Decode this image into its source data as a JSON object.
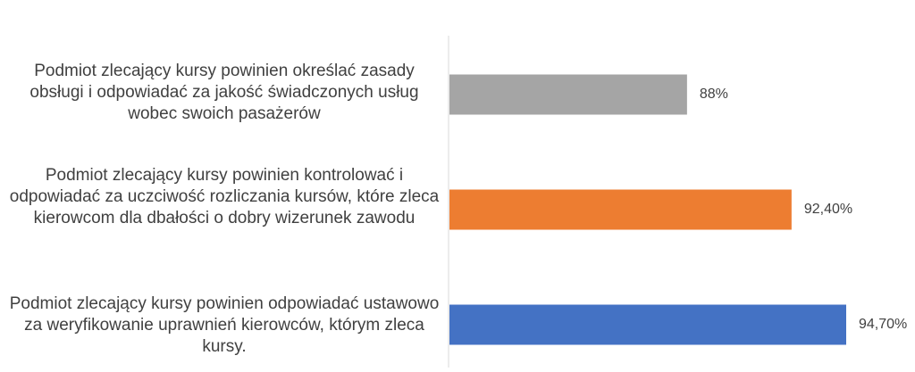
{
  "chart_data": {
    "type": "bar",
    "orientation": "horizontal",
    "title": "",
    "xlabel": "",
    "ylabel": "",
    "categories": [
      "Podmiot zlecający kursy powinien określać zasady obsługi i odpowiadać za jakość świadczonych usług wobec swoich pasażerów",
      "Podmiot zlecający kursy powinien kontrolować i odpowiadać za uczciwość rozliczania kursów, które zleca kierowcom dla dbałości o dobry wizerunek zawodu",
      "Podmiot zlecający kursy powinien odpowiadać ustawowo za weryfikowanie uprawnień kierowców, którym zleca kursy."
    ],
    "values": [
      88,
      92.4,
      94.7
    ],
    "data_labels": [
      "88%",
      "92,40%",
      "94,70%"
    ],
    "colors": [
      "#a5a5a5",
      "#ed7d31",
      "#4472c4"
    ],
    "xlim": [
      78,
      100
    ],
    "grid": false,
    "legend": "none"
  }
}
